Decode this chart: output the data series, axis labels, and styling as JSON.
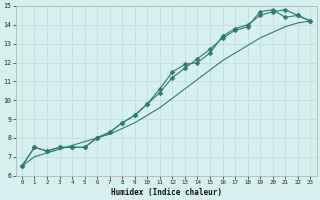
{
  "xlabel": "Humidex (Indice chaleur)",
  "bg_color": "#d6f0ef",
  "grid_color": "#b8ddd9",
  "line_color": "#2d7a6e",
  "x_values": [
    0,
    1,
    2,
    3,
    4,
    5,
    6,
    7,
    8,
    9,
    10,
    11,
    12,
    13,
    14,
    15,
    16,
    17,
    18,
    19,
    20,
    21,
    22,
    23
  ],
  "line1": [
    6.5,
    7.5,
    7.3,
    7.5,
    7.5,
    7.5,
    8.0,
    8.3,
    8.8,
    9.2,
    9.8,
    10.4,
    11.2,
    11.7,
    12.2,
    12.7,
    13.3,
    13.7,
    13.9,
    14.7,
    14.8,
    14.4,
    14.5,
    14.2
  ],
  "line2": [
    6.5,
    7.5,
    7.3,
    7.5,
    7.5,
    7.5,
    8.0,
    8.3,
    8.8,
    9.2,
    9.8,
    10.6,
    11.5,
    11.9,
    12.0,
    12.5,
    13.4,
    13.8,
    14.0,
    14.5,
    14.7,
    14.8,
    14.5,
    14.2
  ],
  "line3": [
    6.5,
    7.0,
    7.2,
    7.4,
    7.6,
    7.8,
    8.0,
    8.2,
    8.5,
    8.8,
    9.2,
    9.6,
    10.1,
    10.6,
    11.1,
    11.6,
    12.1,
    12.5,
    12.9,
    13.3,
    13.6,
    13.9,
    14.1,
    14.2
  ],
  "ylim": [
    6,
    15
  ],
  "xlim": [
    -0.5,
    23.5
  ],
  "yticks": [
    6,
    7,
    8,
    9,
    10,
    11,
    12,
    13,
    14,
    15
  ],
  "xticks": [
    0,
    1,
    2,
    3,
    4,
    5,
    6,
    7,
    8,
    9,
    10,
    11,
    12,
    13,
    14,
    15,
    16,
    17,
    18,
    19,
    20,
    21,
    22,
    23
  ]
}
